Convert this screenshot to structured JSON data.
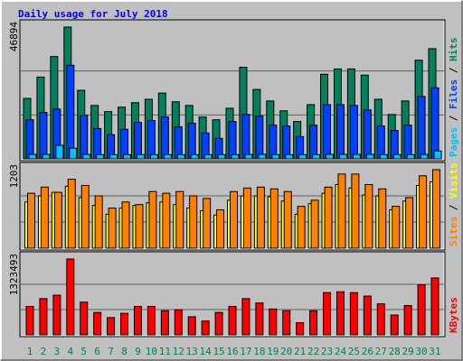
{
  "title": "Daily usage for July 2018",
  "legend_separator": " / ",
  "chart_data": [
    {
      "type": "bar",
      "ylim": [
        0,
        46894
      ],
      "yticks": [
        46894
      ],
      "grid": true,
      "series": [
        {
          "name": "Pages",
          "color": "#00c0ff",
          "values": [
            1600,
            1600,
            4800,
            3800,
            1600,
            1500,
            1500,
            1500,
            1500,
            1500,
            1500,
            1500,
            1500,
            1500,
            1500,
            1500,
            1600,
            1600,
            1500,
            1500,
            1500,
            1500,
            1600,
            1600,
            1600,
            1600,
            1500,
            1500,
            1500,
            1600,
            2800
          ]
        },
        {
          "name": "Files",
          "color": "#0040ff",
          "values": [
            13900,
            16500,
            17700,
            33300,
            15500,
            10800,
            8600,
            10500,
            13000,
            13600,
            14900,
            11400,
            12700,
            9200,
            7300,
            13300,
            15800,
            15200,
            12000,
            11700,
            7900,
            12000,
            19300,
            19300,
            19000,
            17400,
            11700,
            10100,
            12000,
            22200,
            25300
          ]
        },
        {
          "name": "Hits",
          "color": "#00805c",
          "values": [
            21500,
            29100,
            36400,
            46894,
            24400,
            19000,
            16800,
            18400,
            20000,
            21200,
            23400,
            20300,
            19000,
            14900,
            13900,
            18000,
            32600,
            24700,
            20600,
            17100,
            13300,
            19300,
            30100,
            32000,
            32000,
            29800,
            21200,
            15800,
            20600,
            35100,
            39200
          ]
        }
      ]
    },
    {
      "type": "bar",
      "ylim": [
        0,
        1203
      ],
      "yticks": [
        1203
      ],
      "grid": true,
      "series": [
        {
          "name": "Sites",
          "color": "#ff8000",
          "values": [
            842,
            936,
            856,
            1056,
            962,
            802,
            615,
            708,
            668,
            868,
            842,
            868,
            802,
            762,
            588,
            868,
            922,
            936,
            909,
            868,
            641,
            735,
            936,
            1136,
            1136,
            975,
            909,
            641,
            775,
            1109,
            1203
          ]
        },
        {
          "name": "Visits",
          "color": "#ffff00",
          "values": [
            708,
            802,
            856,
            949,
            775,
            655,
            521,
            615,
            655,
            695,
            708,
            668,
            615,
            575,
            508,
            735,
            802,
            802,
            789,
            722,
            521,
            682,
            842,
            975,
            922,
            815,
            802,
            588,
            722,
            962,
            1016
          ]
        }
      ]
    },
    {
      "type": "bar",
      "ylim": [
        0,
        1323493
      ],
      "yticks": [
        1323493
      ],
      "grid": true,
      "categories": [
        "1",
        "2",
        "3",
        "4",
        "5",
        "6",
        "7",
        "8",
        "9",
        "10",
        "11",
        "12",
        "13",
        "14",
        "15",
        "16",
        "17",
        "18",
        "19",
        "20",
        "21",
        "22",
        "23",
        "24",
        "25",
        "26",
        "27",
        "28",
        "29",
        "30",
        "31"
      ],
      "category_colors": [
        "#00805c",
        "#00805c",
        "#00805c",
        "#00805c",
        "#00805c",
        "#00805c",
        "#008040",
        "#008040",
        "#00805c",
        "#00805c",
        "#00805c",
        "#00805c",
        "#00805c",
        "#008040",
        "#008040",
        "#00805c",
        "#00805c",
        "#00805c",
        "#00805c",
        "#00805c",
        "#008040",
        "#008040",
        "#00805c",
        "#00805c",
        "#00805c",
        "#00805c",
        "#00805c",
        "#008040",
        "#008040",
        "#00805c",
        "#00805c"
      ],
      "series": [
        {
          "name": "KBytes",
          "color": "#ff0000",
          "values": [
            496000,
            632000,
            692000,
            1323493,
            571000,
            391000,
            301000,
            376000,
            496000,
            496000,
            421000,
            436000,
            316000,
            241000,
            391000,
            496000,
            632000,
            556000,
            451000,
            421000,
            211000,
            421000,
            737000,
            752000,
            737000,
            677000,
            541000,
            346000,
            511000,
            873000,
            993000
          ]
        }
      ]
    }
  ]
}
